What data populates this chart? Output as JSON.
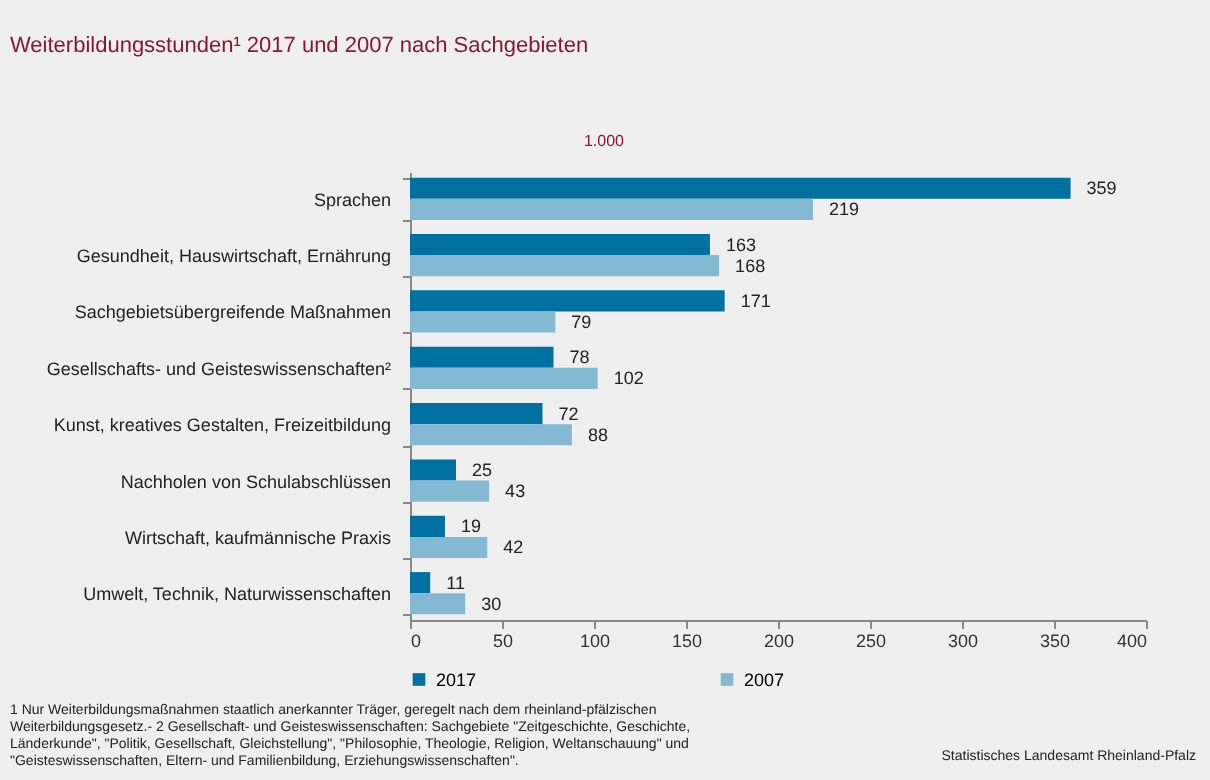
{
  "chart_data": {
    "type": "bar",
    "orientation": "horizontal",
    "title": "Weiterbildungsstunden¹ 2017 und 2007 nach Sachgebieten",
    "subtitle": "1.000",
    "categories": [
      "Sprachen",
      "Gesundheit, Hauswirtschaft, Ernährung",
      "Sachgebietsübergreifende Maßnahmen",
      "Gesellschafts- und Geisteswissenschaften²",
      "Kunst, kreatives Gestalten, Freizeitbildung",
      "Nachholen von Schulabschlüssen",
      "Wirtschaft, kaufmännische Praxis",
      "Umwelt, Technik, Naturwissenschaften"
    ],
    "series": [
      {
        "name": "2017",
        "color": "#0070a0",
        "values": [
          359,
          163,
          171,
          78,
          72,
          25,
          19,
          11
        ]
      },
      {
        "name": "2007",
        "color": "#84b9d4",
        "values": [
          219,
          168,
          79,
          102,
          88,
          43,
          42,
          30
        ]
      }
    ],
    "xlim": [
      0,
      400
    ],
    "xticks": [
      0,
      50,
      100,
      150,
      200,
      250,
      300,
      350,
      400
    ],
    "data_labels": true,
    "legend": "bottom",
    "grid": false,
    "annotations": [
      "1 Nur Weiterbildungsmaßnahmen staatlich anerkannter Träger, geregelt nach dem rheinland-pfälzischen",
      "Weiterbildungsgesetz.- 2 Gesellschaft- und Geisteswissenschaften: Sachgebiete \"Zeitgeschichte, Geschichte,",
      "Länderkunde\", \"Politik, Gesellschaft, Gleichstellung\", \"Philosophie, Theologie, Religion, Weltanschauung\" und",
      "\"Geisteswissenschaften, Eltern- und Familienbildung, Erziehungswissenschaften\".",
      "Statistisches Landesamt Rheinland-Pfalz"
    ]
  }
}
